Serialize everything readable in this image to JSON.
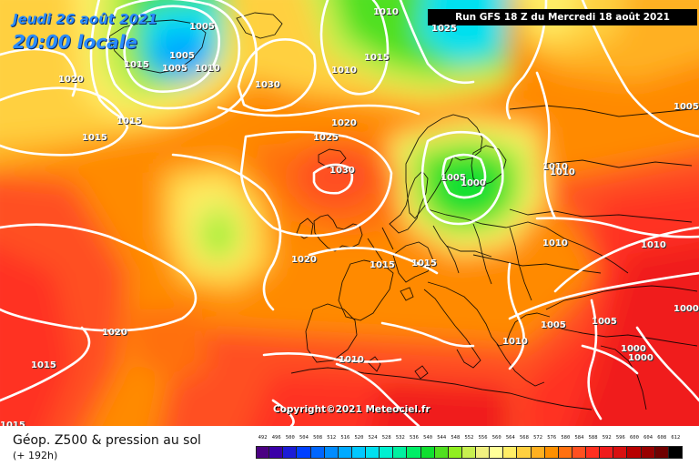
{
  "header": {
    "date": "Jeudi 26 août 2021",
    "time": "20:00 locale",
    "run": "Run GFS 18 Z du Mercredi 18 août 2021"
  },
  "copyright": "Copyright©2021 Meteociel.fr",
  "footer": {
    "title": "Géop. Z500 & pression au sol",
    "subtitle": "(+ 192h)"
  },
  "legend": {
    "labels": [
      "492",
      "496",
      "500",
      "504",
      "508",
      "512",
      "516",
      "520",
      "524",
      "528",
      "532",
      "536",
      "540",
      "544",
      "548",
      "552",
      "556",
      "560",
      "564",
      "568",
      "572",
      "576",
      "580",
      "584",
      "588",
      "592",
      "596",
      "600",
      "604",
      "608",
      "612"
    ],
    "colors": [
      "#4b0082",
      "#3a00a8",
      "#1c1cd6",
      "#0040ff",
      "#0066ff",
      "#008cff",
      "#00aaff",
      "#00c8ff",
      "#00e0f0",
      "#00f0d0",
      "#00f0a0",
      "#00ee66",
      "#10e030",
      "#50e020",
      "#90ee20",
      "#c8f050",
      "#f0f080",
      "#ffff99",
      "#ffee66",
      "#ffd040",
      "#ffb020",
      "#ff9000",
      "#ff7010",
      "#ff5020",
      "#ff3020",
      "#f01c1c",
      "#d81010",
      "#b80000",
      "#980000",
      "#700000",
      "#000000"
    ]
  },
  "isobars": [
    "1005",
    "1010",
    "1015",
    "1005",
    "1005",
    "1010",
    "1020",
    "1030",
    "1010",
    "1015",
    "1025",
    "1015",
    "1015",
    "1020",
    "1025",
    "1030",
    "1005",
    "1000",
    "1010",
    "1010",
    "1010",
    "1010",
    "1020",
    "1015",
    "1015",
    "1020",
    "1010",
    "1005",
    "1005",
    "1000",
    "1000",
    "1000",
    "1015",
    "1015",
    "1010",
    "1005"
  ],
  "colors": {
    "run_bg": "#000000",
    "date_text": "#2a8cff",
    "isobar_line": "#ffffff"
  }
}
